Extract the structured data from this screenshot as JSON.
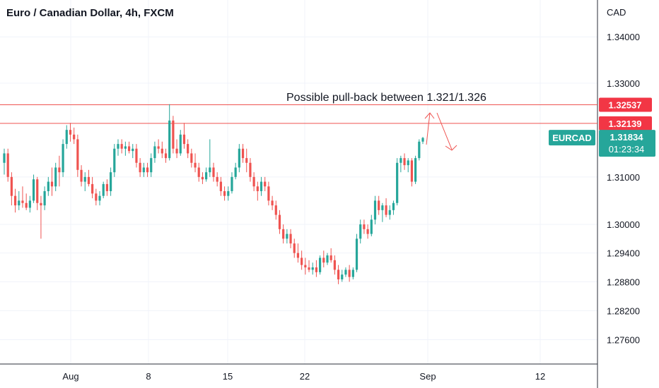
{
  "header": {
    "title": "Euro / Canadian Dollar, 4h, FXCM"
  },
  "chart_data": {
    "type": "candlestick",
    "symbol": "EURCAD",
    "timeframe": "4h",
    "source": "FXCM",
    "currency_label": "CAD",
    "y_scale": "log",
    "ylim": [
      1.271,
      1.348
    ],
    "y_ticks": [
      "1.34000",
      "1.33000",
      "1.31000",
      "1.30000",
      "1.29400",
      "1.28800",
      "1.28200",
      "1.27600"
    ],
    "x_ticks": [
      "Aug",
      "8",
      "15",
      "22",
      "Sep",
      "12"
    ],
    "colors": {
      "up": "#26a69a",
      "down": "#ef5350",
      "line": "#ef5350",
      "label_bg": "#f23645",
      "last_bg": "#26a69a"
    },
    "horizontal_lines": [
      {
        "price": 1.32537,
        "label": "1.32537"
      },
      {
        "price": 1.32139,
        "label": "1.32139"
      }
    ],
    "last_price": {
      "symbol": "EURCAD",
      "price": 1.31834,
      "label": "1.31834",
      "countdown": "01:23:34"
    },
    "annotation": {
      "text": "Possible pull-back between 1.321/1.326"
    },
    "candles": [
      [
        1.313,
        1.316,
        1.3105,
        1.315
      ],
      [
        1.315,
        1.316,
        1.309,
        1.31
      ],
      [
        1.31,
        1.311,
        1.304,
        1.306
      ],
      [
        1.306,
        1.3075,
        1.3025,
        1.304
      ],
      [
        1.304,
        1.307,
        1.303,
        1.305
      ],
      [
        1.305,
        1.308,
        1.3035,
        1.3045
      ],
      [
        1.3045,
        1.3065,
        1.303,
        1.3035
      ],
      [
        1.3035,
        1.306,
        1.3025,
        1.305
      ],
      [
        1.305,
        1.3105,
        1.3045,
        1.3095
      ],
      [
        1.3095,
        1.31,
        1.303,
        1.3045
      ],
      [
        1.3045,
        1.306,
        1.297,
        1.304
      ],
      [
        1.304,
        1.308,
        1.303,
        1.307
      ],
      [
        1.307,
        1.31,
        1.306,
        1.309
      ],
      [
        1.309,
        1.312,
        1.306,
        1.308
      ],
      [
        1.308,
        1.313,
        1.307,
        1.312
      ],
      [
        1.312,
        1.3145,
        1.308,
        1.311
      ],
      [
        1.311,
        1.318,
        1.31,
        1.317
      ],
      [
        1.317,
        1.321,
        1.316,
        1.32
      ],
      [
        1.32,
        1.3215,
        1.3175,
        1.319
      ],
      [
        1.319,
        1.3205,
        1.317,
        1.318
      ],
      [
        1.318,
        1.319,
        1.31,
        1.3115
      ],
      [
        1.3115,
        1.3125,
        1.308,
        1.309
      ],
      [
        1.309,
        1.311,
        1.307,
        1.31
      ],
      [
        1.31,
        1.3115,
        1.308,
        1.3085
      ],
      [
        1.3085,
        1.31,
        1.3055,
        1.3065
      ],
      [
        1.3065,
        1.3075,
        1.304,
        1.305
      ],
      [
        1.305,
        1.307,
        1.304,
        1.306
      ],
      [
        1.306,
        1.309,
        1.3055,
        1.3085
      ],
      [
        1.3085,
        1.3095,
        1.306,
        1.307
      ],
      [
        1.307,
        1.312,
        1.306,
        1.311
      ],
      [
        1.311,
        1.317,
        1.31,
        1.316
      ],
      [
        1.316,
        1.318,
        1.3145,
        1.317
      ],
      [
        1.317,
        1.318,
        1.315,
        1.316
      ],
      [
        1.316,
        1.3175,
        1.3145,
        1.3165
      ],
      [
        1.3165,
        1.3175,
        1.315,
        1.3155
      ],
      [
        1.3155,
        1.317,
        1.314,
        1.316
      ],
      [
        1.316,
        1.317,
        1.312,
        1.313
      ],
      [
        1.313,
        1.314,
        1.31,
        1.311
      ],
      [
        1.311,
        1.313,
        1.31,
        1.312
      ],
      [
        1.312,
        1.313,
        1.31,
        1.311
      ],
      [
        1.311,
        1.315,
        1.31,
        1.314
      ],
      [
        1.314,
        1.3175,
        1.313,
        1.3165
      ],
      [
        1.3165,
        1.318,
        1.315,
        1.316
      ],
      [
        1.316,
        1.3175,
        1.314,
        1.315
      ],
      [
        1.315,
        1.316,
        1.313,
        1.314
      ],
      [
        1.314,
        1.3255,
        1.3135,
        1.322
      ],
      [
        1.322,
        1.323,
        1.315,
        1.316
      ],
      [
        1.316,
        1.318,
        1.314,
        1.315
      ],
      [
        1.315,
        1.32,
        1.3145,
        1.319
      ],
      [
        1.319,
        1.3215,
        1.316,
        1.317
      ],
      [
        1.317,
        1.318,
        1.314,
        1.315
      ],
      [
        1.315,
        1.316,
        1.312,
        1.313
      ],
      [
        1.313,
        1.315,
        1.311,
        1.312
      ],
      [
        1.312,
        1.313,
        1.309,
        1.31
      ],
      [
        1.31,
        1.311,
        1.3085,
        1.3095
      ],
      [
        1.3095,
        1.312,
        1.309,
        1.311
      ],
      [
        1.311,
        1.318,
        1.31,
        1.312
      ],
      [
        1.312,
        1.313,
        1.309,
        1.31
      ],
      [
        1.31,
        1.311,
        1.308,
        1.309
      ],
      [
        1.309,
        1.31,
        1.306,
        1.307
      ],
      [
        1.307,
        1.308,
        1.305,
        1.306
      ],
      [
        1.306,
        1.308,
        1.305,
        1.307
      ],
      [
        1.307,
        1.311,
        1.3065,
        1.31
      ],
      [
        1.31,
        1.313,
        1.3095,
        1.312
      ],
      [
        1.312,
        1.317,
        1.311,
        1.316
      ],
      [
        1.316,
        1.317,
        1.313,
        1.314
      ],
      [
        1.314,
        1.316,
        1.311,
        1.313
      ],
      [
        1.313,
        1.314,
        1.309,
        1.31
      ],
      [
        1.31,
        1.311,
        1.307,
        1.308
      ],
      [
        1.308,
        1.309,
        1.305,
        1.307
      ],
      [
        1.307,
        1.31,
        1.306,
        1.309
      ],
      [
        1.309,
        1.31,
        1.307,
        1.308
      ],
      [
        1.308,
        1.309,
        1.304,
        1.305
      ],
      [
        1.305,
        1.306,
        1.303,
        1.304
      ],
      [
        1.304,
        1.305,
        1.301,
        1.302
      ],
      [
        1.302,
        1.303,
        1.298,
        1.299
      ],
      [
        1.299,
        1.3,
        1.296,
        1.297
      ],
      [
        1.297,
        1.299,
        1.296,
        1.298
      ],
      [
        1.298,
        1.299,
        1.295,
        1.296
      ],
      [
        1.296,
        1.297,
        1.293,
        1.294
      ],
      [
        1.294,
        1.296,
        1.292,
        1.293
      ],
      [
        1.293,
        1.2945,
        1.2905,
        1.2915
      ],
      [
        1.2915,
        1.293,
        1.2895,
        1.291
      ],
      [
        1.291,
        1.2925,
        1.29,
        1.2905
      ],
      [
        1.2905,
        1.292,
        1.2895,
        1.291
      ],
      [
        1.291,
        1.2925,
        1.289,
        1.29
      ],
      [
        1.29,
        1.2935,
        1.2895,
        1.293
      ],
      [
        1.293,
        1.2945,
        1.291,
        1.292
      ],
      [
        1.292,
        1.294,
        1.2915,
        1.2935
      ],
      [
        1.2935,
        1.295,
        1.292,
        1.2925
      ],
      [
        1.2925,
        1.2935,
        1.2895,
        1.2905
      ],
      [
        1.2905,
        1.2915,
        1.2875,
        1.2885
      ],
      [
        1.2885,
        1.2905,
        1.288,
        1.2895
      ],
      [
        1.2895,
        1.291,
        1.289,
        1.2905
      ],
      [
        1.2905,
        1.2915,
        1.288,
        1.289
      ],
      [
        1.289,
        1.291,
        1.2885,
        1.2905
      ],
      [
        1.2905,
        1.298,
        1.29,
        1.297
      ],
      [
        1.297,
        1.301,
        1.296,
        1.3
      ],
      [
        1.3,
        1.301,
        1.298,
        1.299
      ],
      [
        1.299,
        1.3,
        1.297,
        1.298
      ],
      [
        1.298,
        1.302,
        1.2975,
        1.301
      ],
      [
        1.301,
        1.306,
        1.3,
        1.305
      ],
      [
        1.305,
        1.306,
        1.302,
        1.303
      ],
      [
        1.303,
        1.3045,
        1.3005,
        1.304
      ],
      [
        1.304,
        1.3055,
        1.3015,
        1.302
      ],
      [
        1.302,
        1.304,
        1.301,
        1.303
      ],
      [
        1.303,
        1.305,
        1.302,
        1.3045
      ],
      [
        1.3045,
        1.314,
        1.304,
        1.313
      ],
      [
        1.313,
        1.3145,
        1.311,
        1.314
      ],
      [
        1.314,
        1.315,
        1.3115,
        1.3125
      ],
      [
        1.3125,
        1.314,
        1.311,
        1.3135
      ],
      [
        1.3135,
        1.314,
        1.308,
        1.309
      ],
      [
        1.309,
        1.3145,
        1.3085,
        1.314
      ],
      [
        1.314,
        1.318,
        1.3135,
        1.3175
      ],
      [
        1.3175,
        1.3185,
        1.317,
        1.3183
      ]
    ]
  }
}
